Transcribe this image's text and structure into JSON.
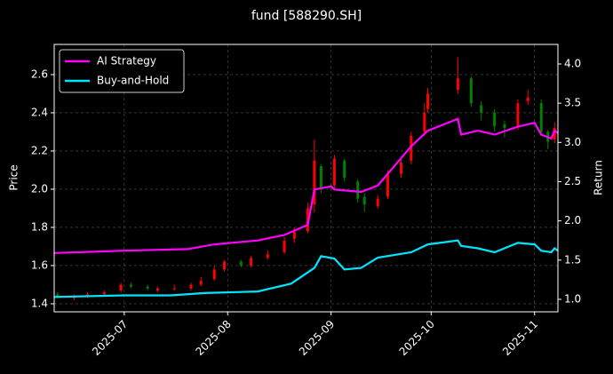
{
  "chart_data": {
    "type": "candlestick",
    "title": "fund [588290.SH]",
    "ylabel": "Price",
    "y2label": "Return",
    "xlim": [
      "2025-06-10",
      "2025-11-08"
    ],
    "xticks": [
      {
        "value": "2025-07-01",
        "label": "2025-07"
      },
      {
        "value": "2025-08-01",
        "label": "2025-08"
      },
      {
        "value": "2025-09-01",
        "label": "2025-09"
      },
      {
        "value": "2025-10-01",
        "label": "2025-10"
      },
      {
        "value": "2025-11-01",
        "label": "2025-11"
      }
    ],
    "ylim": [
      1.358,
      2.758
    ],
    "yticks": [
      1.4,
      1.6,
      1.8,
      {
        "value": 2,
        "label": "2.0"
      },
      2.2,
      2.4,
      2.6
    ],
    "y2lim": [
      0.841,
      4.249
    ],
    "y2ticks": [
      {
        "value": 1,
        "label": "1.0"
      },
      1.5,
      {
        "value": 2,
        "label": "2.0"
      },
      2.5,
      {
        "value": 3,
        "label": "3.0"
      },
      3.5,
      {
        "value": 4,
        "label": "4.0"
      }
    ],
    "grid": true,
    "legend": "upper-left",
    "up_color": "#ff0000",
    "down_color": "#008000",
    "candles": {
      "x": [
        "2025-06-11",
        "2025-06-16",
        "2025-06-20",
        "2025-06-25",
        "2025-06-30",
        "2025-07-03",
        "2025-07-08",
        "2025-07-11",
        "2025-07-16",
        "2025-07-21",
        "2025-07-24",
        "2025-07-28",
        "2025-07-31",
        "2025-08-05",
        "2025-08-08",
        "2025-08-13",
        "2025-08-18",
        "2025-08-21",
        "2025-08-25",
        "2025-08-27",
        "2025-08-29",
        "2025-09-02",
        "2025-09-05",
        "2025-09-09",
        "2025-09-11",
        "2025-09-15",
        "2025-09-18",
        "2025-09-22",
        "2025-09-25",
        "2025-09-29",
        "2025-09-30",
        "2025-10-09",
        "2025-10-13",
        "2025-10-16",
        "2025-10-20",
        "2025-10-23",
        "2025-10-27",
        "2025-10-30",
        "2025-11-03",
        "2025-11-05",
        "2025-11-07"
      ],
      "open": [
        1.45,
        1.43,
        1.44,
        1.45,
        1.47,
        1.5,
        1.49,
        1.47,
        1.48,
        1.48,
        1.5,
        1.53,
        1.58,
        1.62,
        1.6,
        1.64,
        1.67,
        1.74,
        1.78,
        1.92,
        2.12,
        2.02,
        2.15,
        2.04,
        1.96,
        1.91,
        1.96,
        2.08,
        2.15,
        2.3,
        2.42,
        2.52,
        2.58,
        2.44,
        2.4,
        2.34,
        2.33,
        2.46,
        2.45,
        2.3,
        2.26
      ],
      "close": [
        1.44,
        1.44,
        1.45,
        1.46,
        1.5,
        1.49,
        1.48,
        1.48,
        1.48,
        1.5,
        1.52,
        1.58,
        1.62,
        1.6,
        1.64,
        1.66,
        1.73,
        1.78,
        1.9,
        2.15,
        2.0,
        2.16,
        2.06,
        1.95,
        1.92,
        1.95,
        2.08,
        2.14,
        2.28,
        2.4,
        2.5,
        2.58,
        2.45,
        2.4,
        2.33,
        2.32,
        2.45,
        2.48,
        2.3,
        2.25,
        2.32
      ],
      "high": [
        1.46,
        1.45,
        1.46,
        1.47,
        1.51,
        1.51,
        1.5,
        1.49,
        1.5,
        1.51,
        1.54,
        1.6,
        1.63,
        1.63,
        1.65,
        1.68,
        1.75,
        1.8,
        1.93,
        2.26,
        2.13,
        2.18,
        2.16,
        2.05,
        1.98,
        1.97,
        2.1,
        2.16,
        2.3,
        2.45,
        2.53,
        2.69,
        2.59,
        2.46,
        2.42,
        2.36,
        2.47,
        2.52,
        2.47,
        2.31,
        2.35
      ],
      "low": [
        1.43,
        1.42,
        1.43,
        1.44,
        1.46,
        1.48,
        1.47,
        1.46,
        1.47,
        1.47,
        1.49,
        1.52,
        1.57,
        1.59,
        1.59,
        1.63,
        1.66,
        1.72,
        1.77,
        1.88,
        1.98,
        2.0,
        2.04,
        1.93,
        1.88,
        1.9,
        1.95,
        2.06,
        2.13,
        2.28,
        2.4,
        2.5,
        2.43,
        2.36,
        2.3,
        2.27,
        2.31,
        2.44,
        2.28,
        2.21,
        2.24
      ]
    },
    "series": [
      {
        "name": "AI Strategy",
        "color": "#ff00ff",
        "axis": "y2",
        "x": [
          "2025-06-10",
          "2025-07-01",
          "2025-07-20",
          "2025-07-28",
          "2025-08-10",
          "2025-08-18",
          "2025-08-25",
          "2025-08-27",
          "2025-09-01",
          "2025-09-02",
          "2025-09-10",
          "2025-09-15",
          "2025-09-20",
          "2025-09-25",
          "2025-09-30",
          "2025-10-09",
          "2025-10-10",
          "2025-10-15",
          "2025-10-20",
          "2025-10-27",
          "2025-11-01",
          "2025-11-03",
          "2025-11-06",
          "2025-11-07",
          "2025-11-08"
        ],
        "values": [
          1.59,
          1.62,
          1.64,
          1.7,
          1.75,
          1.82,
          1.95,
          2.4,
          2.44,
          2.4,
          2.37,
          2.45,
          2.7,
          2.95,
          3.15,
          3.3,
          3.1,
          3.15,
          3.1,
          3.2,
          3.25,
          3.1,
          3.05,
          3.15,
          3.12
        ]
      },
      {
        "name": "Buy-and-Hold",
        "color": "#00e5ff",
        "axis": "y2",
        "x": [
          "2025-06-10",
          "2025-07-01",
          "2025-07-15",
          "2025-07-25",
          "2025-08-10",
          "2025-08-20",
          "2025-08-27",
          "2025-08-29",
          "2025-09-02",
          "2025-09-05",
          "2025-09-10",
          "2025-09-15",
          "2025-09-25",
          "2025-09-30",
          "2025-10-09",
          "2025-10-10",
          "2025-10-15",
          "2025-10-20",
          "2025-10-27",
          "2025-11-01",
          "2025-11-03",
          "2025-11-06",
          "2025-11-07",
          "2025-11-08"
        ],
        "values": [
          1.03,
          1.05,
          1.05,
          1.08,
          1.1,
          1.2,
          1.4,
          1.55,
          1.52,
          1.38,
          1.4,
          1.53,
          1.6,
          1.7,
          1.75,
          1.68,
          1.65,
          1.6,
          1.72,
          1.7,
          1.62,
          1.6,
          1.65,
          1.62
        ]
      }
    ]
  }
}
